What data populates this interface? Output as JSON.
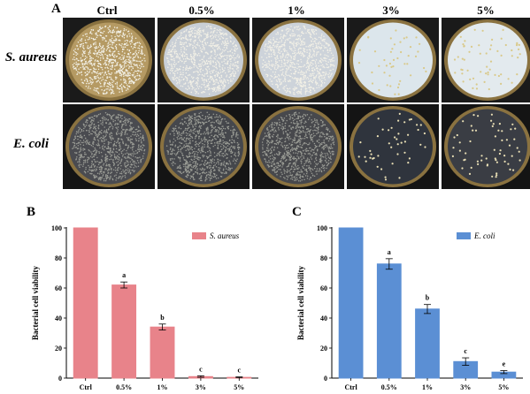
{
  "panel_a": {
    "letter": "A",
    "columns": [
      "Ctrl",
      "0.5%",
      "1%",
      "3%",
      "5%"
    ],
    "rows": [
      {
        "label": "S. aureus",
        "agar": "#dde3e6",
        "colonies": [
          "dense",
          "dense",
          "dense",
          "sparse",
          "sparse"
        ],
        "agar_by_col": [
          "#b59a63",
          "#c9cfd6",
          "#cdd3da",
          "#dce6ec",
          "#e3eaee"
        ]
      },
      {
        "label": "E. coli",
        "agar": "#3b3f47",
        "colonies": [
          "dense",
          "dense",
          "dense",
          "sparse",
          "sparse"
        ],
        "agar_by_col": [
          "#4a4b50",
          "#45474c",
          "#47484c",
          "#2f343d",
          "#3a3d44"
        ]
      }
    ]
  },
  "chart_data": [
    {
      "panel": "B",
      "type": "bar",
      "categories": [
        "Ctrl",
        "0.5%",
        "1%",
        "3%",
        "5%"
      ],
      "series": [
        {
          "name": "S. aureus",
          "values": [
            100,
            62,
            34,
            1,
            0.5
          ],
          "errors": [
            0,
            2,
            2,
            0.5,
            0.3
          ],
          "color": "#e8838a"
        }
      ],
      "letters": [
        "",
        "a",
        "b",
        "c",
        "c"
      ],
      "xlabel": "",
      "ylabel": "Bacterial cell viability",
      "ylim": [
        0,
        100
      ],
      "yticks": [
        0,
        20,
        40,
        60,
        80,
        100
      ],
      "legend_position": "top-right"
    },
    {
      "panel": "C",
      "type": "bar",
      "categories": [
        "Ctrl",
        "0.5%",
        "1%",
        "3%",
        "5%"
      ],
      "series": [
        {
          "name": "E. coli",
          "values": [
            100,
            76,
            46,
            11,
            4
          ],
          "errors": [
            0,
            3.5,
            3,
            2.5,
            1
          ],
          "color": "#5b8fd4"
        }
      ],
      "letters": [
        "",
        "a",
        "b",
        "c",
        "e"
      ],
      "xlabel": "",
      "ylabel": "Bacterial cell viability",
      "ylim": [
        0,
        100
      ],
      "yticks": [
        0,
        20,
        40,
        60,
        80,
        100
      ],
      "legend_position": "top-right"
    }
  ]
}
